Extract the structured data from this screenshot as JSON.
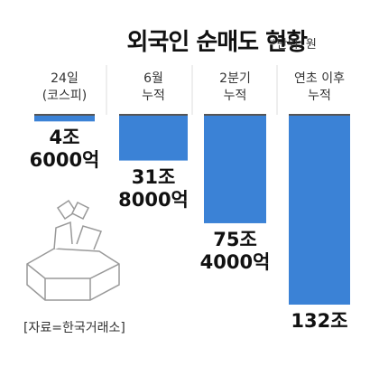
{
  "chart_data": {
    "type": "bar",
    "title": "외국인 순매도 현황",
    "unit_note": "*단위: 원",
    "categories": [
      "24일\n(코스피)",
      "6월\n누적",
      "2분기\n누적",
      "연초 이후\n누적"
    ],
    "values": [
      4.6,
      31.8,
      75.4,
      132
    ],
    "value_labels": [
      "4조\n6000억",
      "31조\n8000억",
      "75조\n4000억",
      "132조"
    ],
    "color": "#3b82d6",
    "ylim": [
      0,
      132
    ],
    "source": "[자료=한국거래소]"
  }
}
